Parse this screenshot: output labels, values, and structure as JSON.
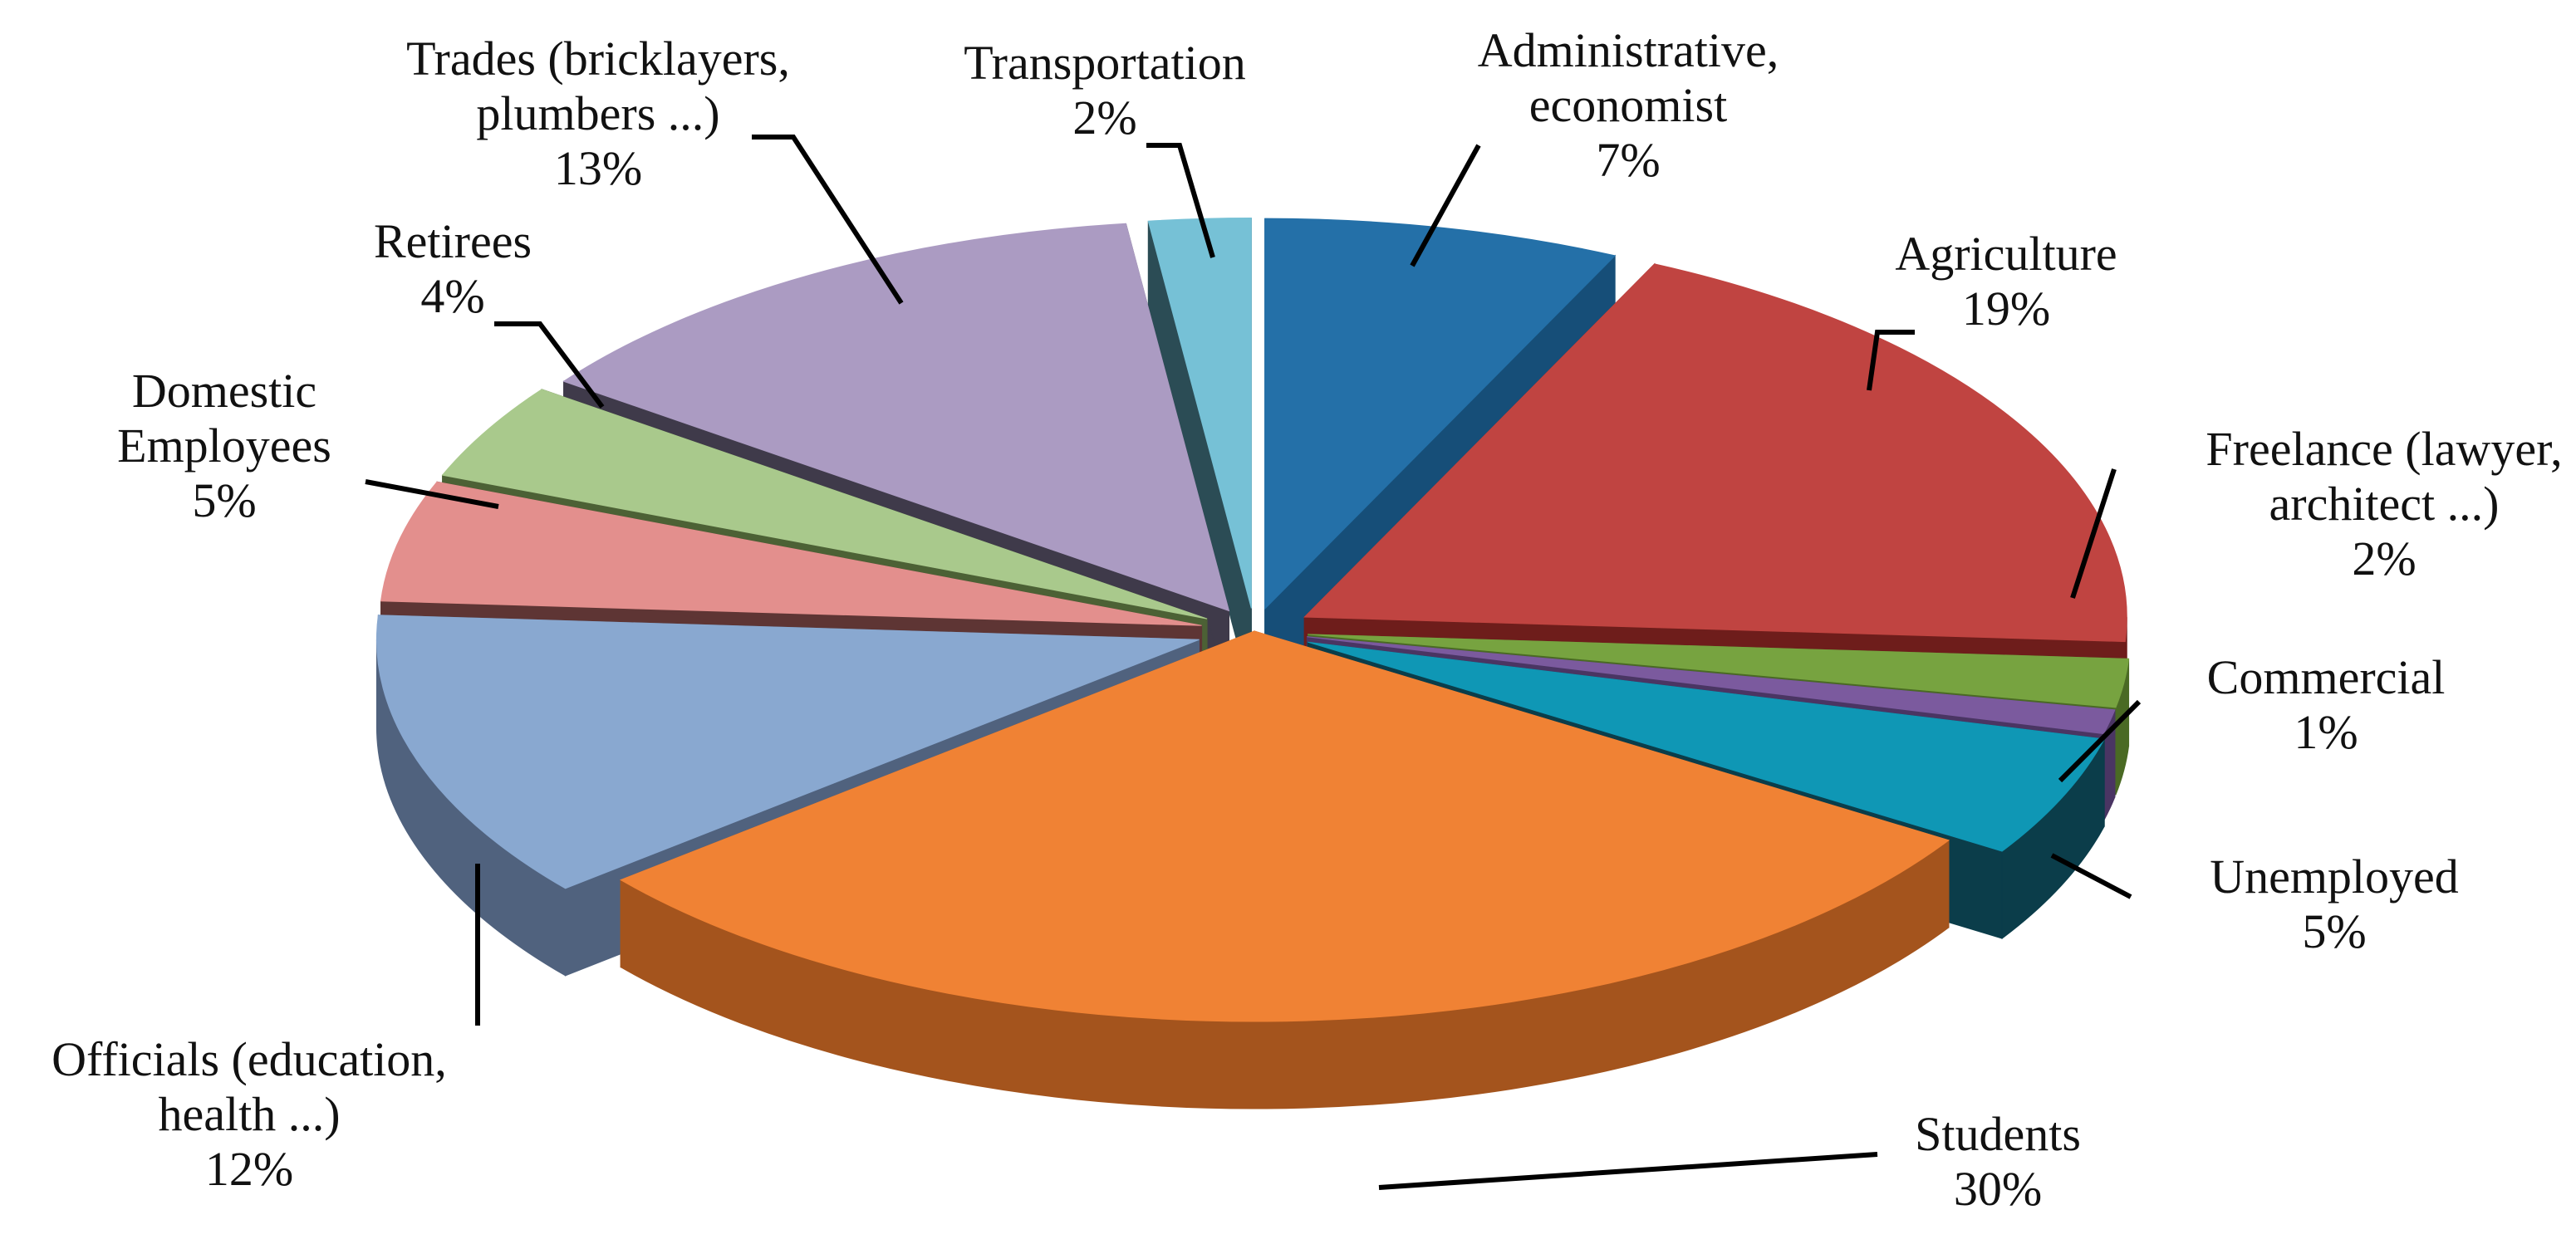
{
  "chart_data": {
    "type": "pie",
    "style": "3d-exploded",
    "title": "",
    "legend": "none",
    "slices": [
      {
        "key": "administrative",
        "label_lines": [
          "Administrative,",
          "economist"
        ],
        "percent_label": "7%",
        "value": 7,
        "top_color": "#2470a8",
        "side_color": "#164e78"
      },
      {
        "key": "agriculture",
        "label_lines": [
          "Agriculture"
        ],
        "percent_label": "19%",
        "value": 19,
        "top_color": "#c04441",
        "side_color": "#6e1d1b"
      },
      {
        "key": "freelance",
        "label_lines": [
          "Freelance (lawyer,",
          "architect ...)"
        ],
        "percent_label": "2%",
        "value": 2,
        "top_color": "#77a340",
        "side_color": "#4a6a24"
      },
      {
        "key": "commercial",
        "label_lines": [
          "Commercial"
        ],
        "percent_label": "1%",
        "value": 1,
        "top_color": "#7b5a9e",
        "side_color": "#4a3563"
      },
      {
        "key": "unemployed",
        "label_lines": [
          "Unemployed"
        ],
        "percent_label": "5%",
        "value": 5,
        "top_color": "#0f97b5",
        "side_color": "#0b3d4a"
      },
      {
        "key": "students",
        "label_lines": [
          "Students"
        ],
        "percent_label": "30%",
        "value": 30,
        "top_color": "#f08234",
        "side_color": "#a4541d"
      },
      {
        "key": "officials",
        "label_lines": [
          "Officials (education,",
          "health ...)"
        ],
        "percent_label": "12%",
        "value": 12,
        "top_color": "#89a8d0",
        "side_color": "#50627e"
      },
      {
        "key": "domestic",
        "label_lines": [
          "Domestic",
          "Employees"
        ],
        "percent_label": "5%",
        "value": 5,
        "top_color": "#e38f8d",
        "side_color": "#5e3534"
      },
      {
        "key": "retirees",
        "label_lines": [
          "Retirees"
        ],
        "percent_label": "4%",
        "value": 4,
        "top_color": "#a9c98c",
        "side_color": "#4c6135"
      },
      {
        "key": "trades",
        "label_lines": [
          "Trades (bricklayers,",
          "plumbers ...)"
        ],
        "percent_label": "13%",
        "value": 13,
        "top_color": "#ab9bc2",
        "side_color": "#3f3a4a"
      },
      {
        "key": "transportation",
        "label_lines": [
          "Transportation"
        ],
        "percent_label": "2%",
        "value": 2,
        "top_color": "#76c1d6",
        "side_color": "#2b4c55"
      }
    ]
  }
}
